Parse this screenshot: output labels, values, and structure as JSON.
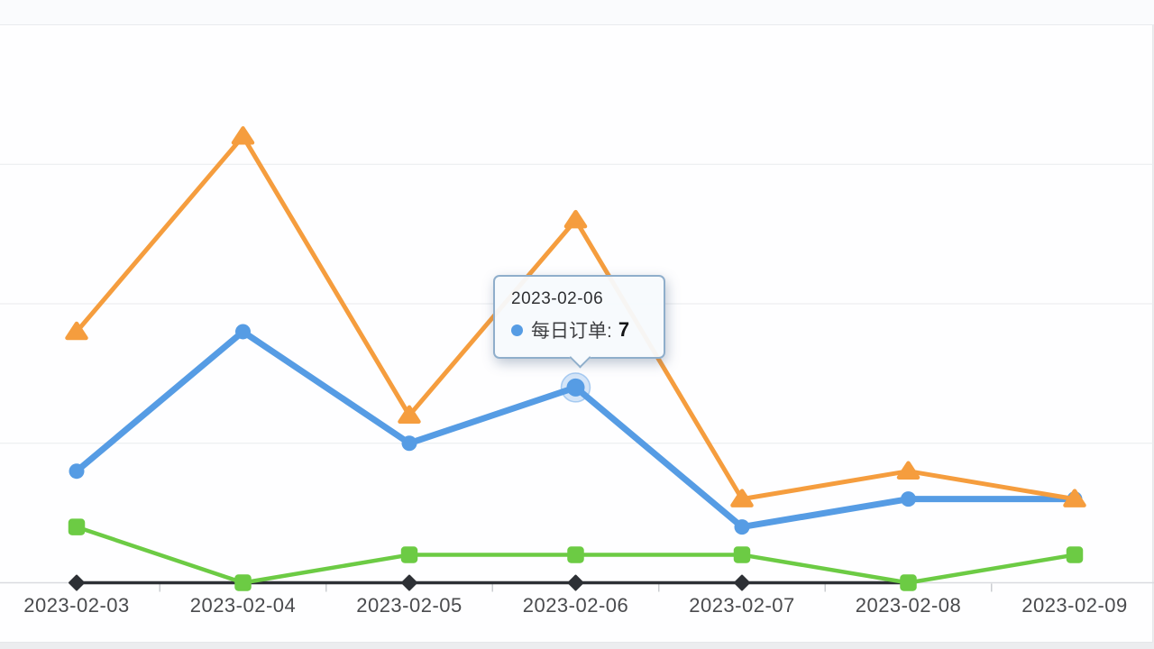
{
  "colors": {
    "page_background": "#ECEDEF",
    "top_strip_background": "#FAFBFD",
    "card_background": "#FEFEFF",
    "card_border": "#E2E4E8",
    "gridline": "#E9EBEE",
    "axis_line": "#D9DBDF",
    "axis_tick": "#CBCDD1",
    "axis_label": "#4A4B4E",
    "blue": "#569CE4",
    "orange": "#F59D3E",
    "green": "#6CCB44",
    "black": "#2D3035",
    "highlight_halo": "rgba(86,156,228,0.25)",
    "highlight_ring": "rgba(86,156,228,0.45)",
    "tooltip_border": "#8FAECB",
    "tooltip_background": "rgba(247,250,253,0.95)"
  },
  "tooltip": {
    "date": "2023-02-06",
    "series_label": "每日订单:",
    "value": "7",
    "marker_color": "#569CE4"
  },
  "chart_data": {
    "type": "line",
    "title": "",
    "xlabel": "",
    "ylabel": "",
    "categories": [
      "2023-02-03",
      "2023-02-04",
      "2023-02-05",
      "2023-02-06",
      "2023-02-07",
      "2023-02-08",
      "2023-02-09"
    ],
    "series": [
      {
        "id": "black-diamond-series",
        "color": "#2D3035",
        "marker": "diamond",
        "line_width": 3.5,
        "values": [
          0,
          0,
          0,
          0,
          0,
          0,
          null
        ]
      },
      {
        "id": "green-square-series",
        "color": "#6CCB44",
        "marker": "square",
        "line_width": 4.5,
        "values": [
          2,
          0,
          1,
          1,
          1,
          0,
          1
        ]
      },
      {
        "id": "daily-orders-blue-series",
        "name": "每日订单",
        "color": "#569CE4",
        "marker": "circle",
        "line_width": 7,
        "values": [
          4,
          9,
          5,
          7,
          2,
          3,
          3
        ],
        "highlight_index": 3
      },
      {
        "id": "orange-triangle-series",
        "color": "#F59D3E",
        "marker": "triangle",
        "line_width": 5,
        "values": [
          9,
          16,
          6,
          13,
          3,
          4,
          3
        ]
      }
    ],
    "ylim": [
      0,
      20
    ],
    "grid": true,
    "grid_values": [
      5,
      10,
      15,
      20
    ],
    "legend_position": "none",
    "tooltip_point": {
      "category": "2023-02-06",
      "series": "每日订单",
      "value": 7
    }
  }
}
